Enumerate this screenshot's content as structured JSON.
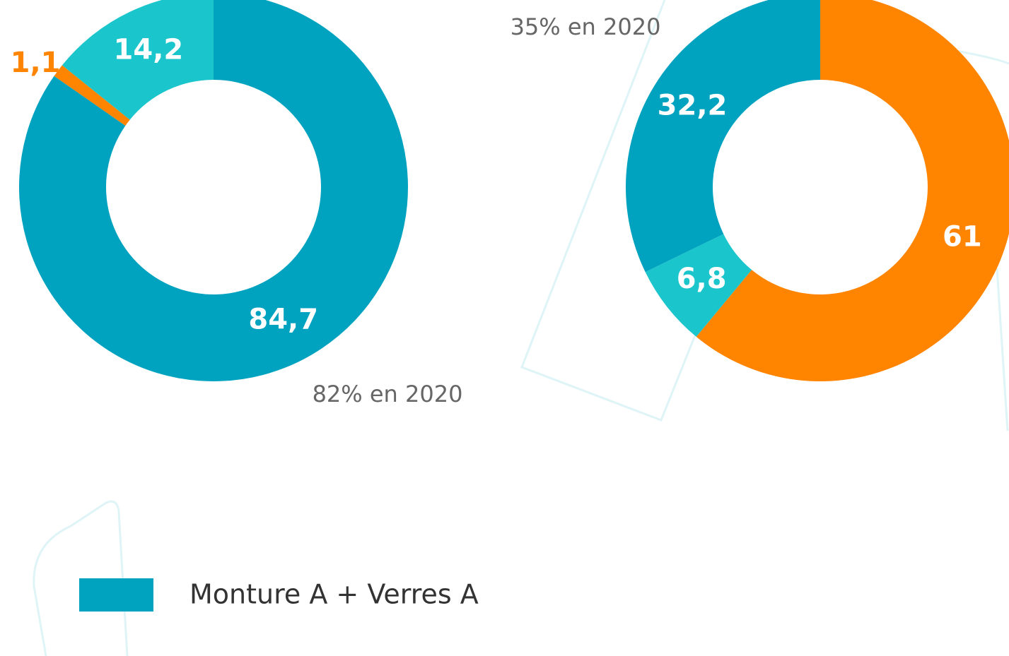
{
  "chart_data": [
    {
      "type": "pie",
      "values": [
        84.7,
        1.1,
        14.2
      ],
      "value_labels": [
        "84,7",
        "1,1",
        "14,2"
      ],
      "colors": [
        "#00a3bf",
        "#ff8400",
        "#1ac5cc"
      ],
      "annotation": "82% en 2020"
    },
    {
      "type": "pie",
      "values": [
        61,
        6.8,
        32.2
      ],
      "value_labels": [
        "61",
        "6,8",
        "32,2"
      ],
      "colors": [
        "#ff8400",
        "#1ac5cc",
        "#00a3bf"
      ],
      "annotation": "35% en 2020"
    }
  ],
  "legend": {
    "label": "Monture A + Verres A",
    "color": "#00a3bf"
  }
}
